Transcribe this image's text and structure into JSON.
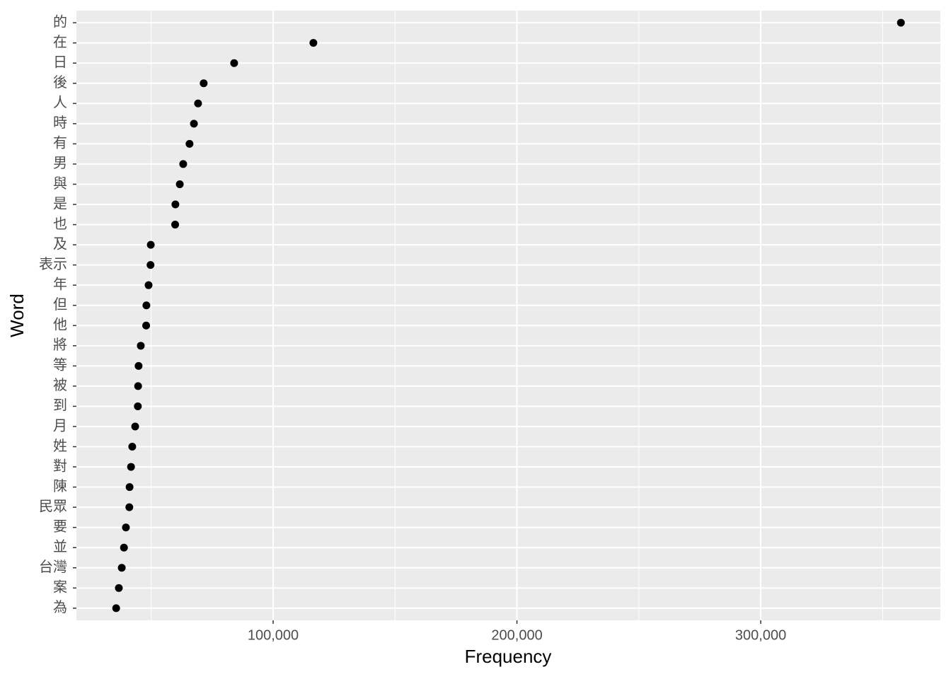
{
  "chart_data": {
    "type": "scatter",
    "x_label": "Frequency",
    "y_label": "Word",
    "categories": [
      "的",
      "在",
      "日",
      "後",
      "人",
      "時",
      "有",
      "男",
      "與",
      "是",
      "也",
      "及",
      "表示",
      "年",
      "但",
      "他",
      "將",
      "等",
      "被",
      "到",
      "月",
      "姓",
      "對",
      "陳",
      "民眾",
      "要",
      "並",
      "台灣",
      "案",
      "為"
    ],
    "values": [
      357500,
      116500,
      84000,
      71500,
      69200,
      67500,
      65700,
      63100,
      61700,
      59900,
      59800,
      49800,
      49700,
      48900,
      48000,
      47900,
      45700,
      44800,
      44600,
      44500,
      43400,
      42200,
      41700,
      41100,
      41000,
      39600,
      38800,
      37900,
      36700,
      35600
    ],
    "color": "#000000",
    "xlim": [
      19300,
      373700
    ],
    "xticks": [
      {
        "value": 100000,
        "label": "100,000"
      },
      {
        "value": 200000,
        "label": "200,000"
      },
      {
        "value": 300000,
        "label": "300,000"
      }
    ],
    "minor_xticks": [
      50000,
      150000,
      250000,
      350000
    ],
    "grid": true
  }
}
